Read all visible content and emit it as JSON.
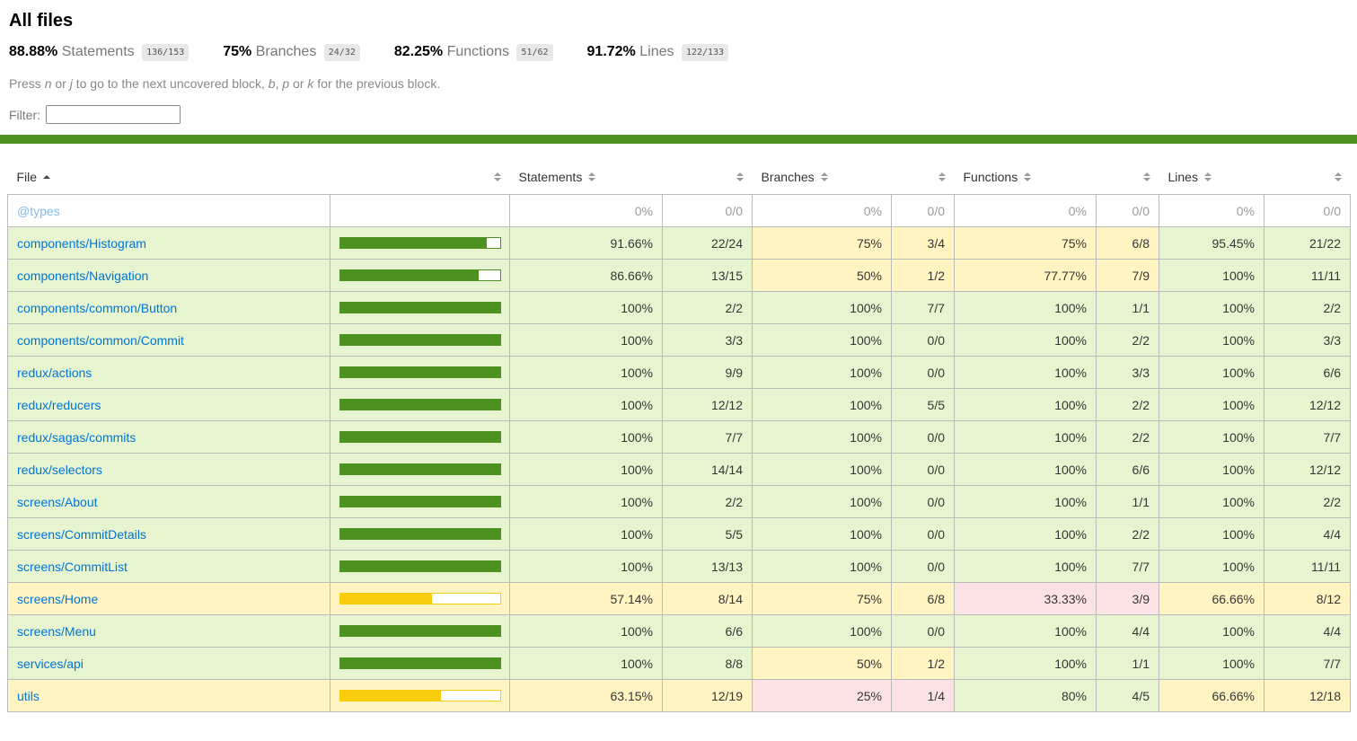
{
  "colors": {
    "accent_green": "#4d9221",
    "accent_gold": "#f9cd0b",
    "high_bg": "#e6f5d0",
    "medium_bg": "#fff4c2",
    "low_bg": "#fce1e5",
    "link_blue": "#0074d9",
    "chip_bg": "#e8e8e8"
  },
  "header": {
    "title": "All files",
    "summary": [
      {
        "pct": "88.88%",
        "label": "Statements",
        "fraction": "136/153"
      },
      {
        "pct": "75%",
        "label": "Branches",
        "fraction": "24/32"
      },
      {
        "pct": "82.25%",
        "label": "Functions",
        "fraction": "51/62"
      },
      {
        "pct": "91.72%",
        "label": "Lines",
        "fraction": "122/133"
      }
    ],
    "hint_parts": [
      {
        "text": "Press "
      },
      {
        "text": "n",
        "em": true
      },
      {
        "text": " or "
      },
      {
        "text": "j",
        "em": true
      },
      {
        "text": " to go to the next uncovered block, "
      },
      {
        "text": "b",
        "em": true
      },
      {
        "text": ", "
      },
      {
        "text": "p",
        "em": true
      },
      {
        "text": " or "
      },
      {
        "text": "k",
        "em": true
      },
      {
        "text": " for the previous block."
      }
    ],
    "filter_label": "Filter:",
    "filter_value": "",
    "filter_placeholder": ""
  },
  "table": {
    "columns": [
      {
        "key": "file",
        "label": "File",
        "sorted": "asc"
      },
      {
        "key": "file-bar",
        "label": ""
      },
      {
        "key": "statements",
        "label": "Statements"
      },
      {
        "key": "statements-fraction",
        "label": ""
      },
      {
        "key": "branches",
        "label": "Branches"
      },
      {
        "key": "branches-fraction",
        "label": ""
      },
      {
        "key": "functions",
        "label": "Functions"
      },
      {
        "key": "functions-fraction",
        "label": ""
      },
      {
        "key": "lines",
        "label": "Lines"
      },
      {
        "key": "lines-fraction",
        "label": ""
      }
    ],
    "rows": [
      {
        "file": "@types",
        "level": "empty",
        "bar": null,
        "statements": {
          "pct": "0%",
          "frac": "0/0",
          "level": "empty"
        },
        "branches": {
          "pct": "0%",
          "frac": "0/0",
          "level": "empty"
        },
        "functions": {
          "pct": "0%",
          "frac": "0/0",
          "level": "empty"
        },
        "lines": {
          "pct": "0%",
          "frac": "0/0",
          "level": "empty"
        }
      },
      {
        "file": "components/Histogram",
        "level": "high",
        "bar": {
          "pct": 91.66,
          "level": "high"
        },
        "statements": {
          "pct": "91.66%",
          "frac": "22/24",
          "level": "high"
        },
        "branches": {
          "pct": "75%",
          "frac": "3/4",
          "level": "medium"
        },
        "functions": {
          "pct": "75%",
          "frac": "6/8",
          "level": "medium"
        },
        "lines": {
          "pct": "95.45%",
          "frac": "21/22",
          "level": "high"
        }
      },
      {
        "file": "components/Navigation",
        "level": "high",
        "bar": {
          "pct": 86.66,
          "level": "high"
        },
        "statements": {
          "pct": "86.66%",
          "frac": "13/15",
          "level": "high"
        },
        "branches": {
          "pct": "50%",
          "frac": "1/2",
          "level": "medium"
        },
        "functions": {
          "pct": "77.77%",
          "frac": "7/9",
          "level": "medium"
        },
        "lines": {
          "pct": "100%",
          "frac": "11/11",
          "level": "high"
        }
      },
      {
        "file": "components/common/Button",
        "level": "high",
        "bar": {
          "pct": 100,
          "level": "high"
        },
        "statements": {
          "pct": "100%",
          "frac": "2/2",
          "level": "high"
        },
        "branches": {
          "pct": "100%",
          "frac": "7/7",
          "level": "high"
        },
        "functions": {
          "pct": "100%",
          "frac": "1/1",
          "level": "high"
        },
        "lines": {
          "pct": "100%",
          "frac": "2/2",
          "level": "high"
        }
      },
      {
        "file": "components/common/Commit",
        "level": "high",
        "bar": {
          "pct": 100,
          "level": "high"
        },
        "statements": {
          "pct": "100%",
          "frac": "3/3",
          "level": "high"
        },
        "branches": {
          "pct": "100%",
          "frac": "0/0",
          "level": "high"
        },
        "functions": {
          "pct": "100%",
          "frac": "2/2",
          "level": "high"
        },
        "lines": {
          "pct": "100%",
          "frac": "3/3",
          "level": "high"
        }
      },
      {
        "file": "redux/actions",
        "level": "high",
        "bar": {
          "pct": 100,
          "level": "high"
        },
        "statements": {
          "pct": "100%",
          "frac": "9/9",
          "level": "high"
        },
        "branches": {
          "pct": "100%",
          "frac": "0/0",
          "level": "high"
        },
        "functions": {
          "pct": "100%",
          "frac": "3/3",
          "level": "high"
        },
        "lines": {
          "pct": "100%",
          "frac": "6/6",
          "level": "high"
        }
      },
      {
        "file": "redux/reducers",
        "level": "high",
        "bar": {
          "pct": 100,
          "level": "high"
        },
        "statements": {
          "pct": "100%",
          "frac": "12/12",
          "level": "high"
        },
        "branches": {
          "pct": "100%",
          "frac": "5/5",
          "level": "high"
        },
        "functions": {
          "pct": "100%",
          "frac": "2/2",
          "level": "high"
        },
        "lines": {
          "pct": "100%",
          "frac": "12/12",
          "level": "high"
        }
      },
      {
        "file": "redux/sagas/commits",
        "level": "high",
        "bar": {
          "pct": 100,
          "level": "high"
        },
        "statements": {
          "pct": "100%",
          "frac": "7/7",
          "level": "high"
        },
        "branches": {
          "pct": "100%",
          "frac": "0/0",
          "level": "high"
        },
        "functions": {
          "pct": "100%",
          "frac": "2/2",
          "level": "high"
        },
        "lines": {
          "pct": "100%",
          "frac": "7/7",
          "level": "high"
        }
      },
      {
        "file": "redux/selectors",
        "level": "high",
        "bar": {
          "pct": 100,
          "level": "high"
        },
        "statements": {
          "pct": "100%",
          "frac": "14/14",
          "level": "high"
        },
        "branches": {
          "pct": "100%",
          "frac": "0/0",
          "level": "high"
        },
        "functions": {
          "pct": "100%",
          "frac": "6/6",
          "level": "high"
        },
        "lines": {
          "pct": "100%",
          "frac": "12/12",
          "level": "high"
        }
      },
      {
        "file": "screens/About",
        "level": "high",
        "bar": {
          "pct": 100,
          "level": "high"
        },
        "statements": {
          "pct": "100%",
          "frac": "2/2",
          "level": "high"
        },
        "branches": {
          "pct": "100%",
          "frac": "0/0",
          "level": "high"
        },
        "functions": {
          "pct": "100%",
          "frac": "1/1",
          "level": "high"
        },
        "lines": {
          "pct": "100%",
          "frac": "2/2",
          "level": "high"
        }
      },
      {
        "file": "screens/CommitDetails",
        "level": "high",
        "bar": {
          "pct": 100,
          "level": "high"
        },
        "statements": {
          "pct": "100%",
          "frac": "5/5",
          "level": "high"
        },
        "branches": {
          "pct": "100%",
          "frac": "0/0",
          "level": "high"
        },
        "functions": {
          "pct": "100%",
          "frac": "2/2",
          "level": "high"
        },
        "lines": {
          "pct": "100%",
          "frac": "4/4",
          "level": "high"
        }
      },
      {
        "file": "screens/CommitList",
        "level": "high",
        "bar": {
          "pct": 100,
          "level": "high"
        },
        "statements": {
          "pct": "100%",
          "frac": "13/13",
          "level": "high"
        },
        "branches": {
          "pct": "100%",
          "frac": "0/0",
          "level": "high"
        },
        "functions": {
          "pct": "100%",
          "frac": "7/7",
          "level": "high"
        },
        "lines": {
          "pct": "100%",
          "frac": "11/11",
          "level": "high"
        }
      },
      {
        "file": "screens/Home",
        "level": "medium",
        "bar": {
          "pct": 57.14,
          "level": "medium"
        },
        "statements": {
          "pct": "57.14%",
          "frac": "8/14",
          "level": "medium"
        },
        "branches": {
          "pct": "75%",
          "frac": "6/8",
          "level": "medium"
        },
        "functions": {
          "pct": "33.33%",
          "frac": "3/9",
          "level": "low"
        },
        "lines": {
          "pct": "66.66%",
          "frac": "8/12",
          "level": "medium"
        }
      },
      {
        "file": "screens/Menu",
        "level": "high",
        "bar": {
          "pct": 100,
          "level": "high"
        },
        "statements": {
          "pct": "100%",
          "frac": "6/6",
          "level": "high"
        },
        "branches": {
          "pct": "100%",
          "frac": "0/0",
          "level": "high"
        },
        "functions": {
          "pct": "100%",
          "frac": "4/4",
          "level": "high"
        },
        "lines": {
          "pct": "100%",
          "frac": "4/4",
          "level": "high"
        }
      },
      {
        "file": "services/api",
        "level": "high",
        "bar": {
          "pct": 100,
          "level": "high"
        },
        "statements": {
          "pct": "100%",
          "frac": "8/8",
          "level": "high"
        },
        "branches": {
          "pct": "50%",
          "frac": "1/2",
          "level": "medium"
        },
        "functions": {
          "pct": "100%",
          "frac": "1/1",
          "level": "high"
        },
        "lines": {
          "pct": "100%",
          "frac": "7/7",
          "level": "high"
        }
      },
      {
        "file": "utils",
        "level": "medium",
        "bar": {
          "pct": 63.15,
          "level": "medium"
        },
        "statements": {
          "pct": "63.15%",
          "frac": "12/19",
          "level": "medium"
        },
        "branches": {
          "pct": "25%",
          "frac": "1/4",
          "level": "low"
        },
        "functions": {
          "pct": "80%",
          "frac": "4/5",
          "level": "high"
        },
        "lines": {
          "pct": "66.66%",
          "frac": "12/18",
          "level": "medium"
        }
      }
    ]
  }
}
